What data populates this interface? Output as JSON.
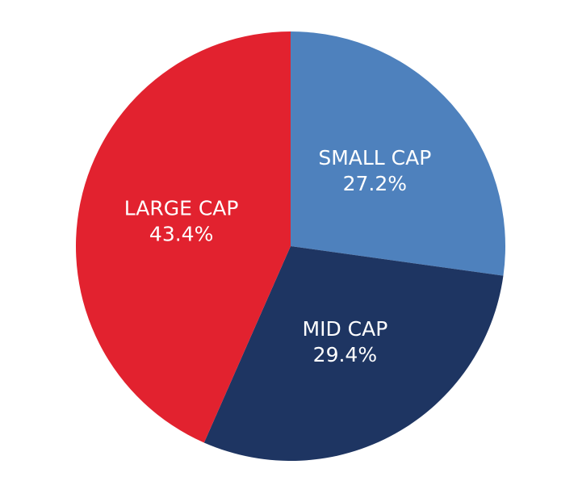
{
  "chart_data": {
    "type": "pie",
    "title": "",
    "legend": "none",
    "slices": [
      {
        "label": "SMALL CAP",
        "value": 27.2,
        "display": "27.2%",
        "color": "#4e81bd"
      },
      {
        "label": "MID CAP",
        "value": 29.4,
        "display": "29.4%",
        "color": "#1e3562"
      },
      {
        "label": "LARGE CAP",
        "value": 43.4,
        "display": "43.4%",
        "color": "#e2222f"
      }
    ],
    "start_direction": "top",
    "rotation": "clockwise"
  }
}
